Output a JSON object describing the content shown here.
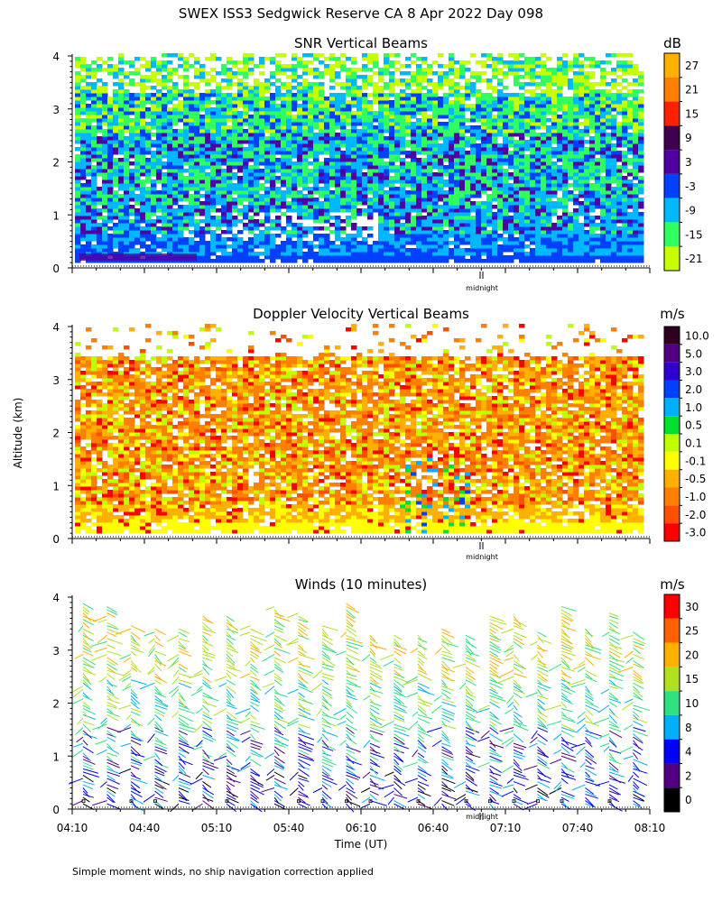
{
  "title": "SWEX ISS3 Sedgwick Reserve CA   8 Apr 2022 Day 098",
  "footnote": "Simple moment winds, no ship navigation correction applied",
  "y_axis_label": "Altitude (km)",
  "x_axis_label": "Time (UT)",
  "midnight_label": "midnight",
  "chart_data": [
    {
      "type": "heatmap",
      "title": "SNR Vertical Beams",
      "units": "dB",
      "ylim": [
        0,
        4
      ],
      "yticks": [
        "0",
        "1",
        "2",
        "3",
        "4"
      ],
      "xlim": [
        "04:10",
        "08:10"
      ],
      "x_tick_count": 9,
      "colorbar": {
        "labels": [
          "27",
          "21",
          "15",
          "9",
          "3",
          "-3",
          "-9",
          "-15",
          "-21"
        ],
        "colors": [
          "#ffb000",
          "#ff8000",
          "#ff2000",
          "#400050",
          "#5000a0",
          "#0040ff",
          "#00b8ff",
          "#30ff60",
          "#c8ff00"
        ]
      }
    },
    {
      "type": "heatmap",
      "title": "Doppler Velocity Vertical Beams",
      "units": "m/s",
      "ylim": [
        0,
        4
      ],
      "yticks": [
        "0",
        "1",
        "2",
        "3",
        "4"
      ],
      "xlim": [
        "04:10",
        "08:10"
      ],
      "x_tick_count": 9,
      "colorbar": {
        "labels": [
          "10.0",
          "5.0",
          "3.0",
          "2.0",
          "1.0",
          "0.5",
          "0.1",
          "-0.1",
          "-0.5",
          "-1.0",
          "-2.0",
          "-3.0"
        ],
        "colors": [
          "#300020",
          "#500080",
          "#3000d0",
          "#0040ff",
          "#00b0ff",
          "#00e030",
          "#c0ff00",
          "#ffff00",
          "#ffb000",
          "#ff8000",
          "#ff5000",
          "#ff0000"
        ]
      }
    },
    {
      "type": "wind-barbs",
      "title": "Winds (10 minutes)",
      "units": "m/s",
      "ylim": [
        0,
        4
      ],
      "yticks": [
        "0",
        "1",
        "2",
        "3",
        "4"
      ],
      "x": [
        "04:10",
        "04:40",
        "05:10",
        "05:40",
        "06:10",
        "06:40",
        "07:10",
        "07:40",
        "08:10"
      ],
      "colorbar": {
        "labels": [
          "30",
          "25",
          "20",
          "15",
          "10",
          "8",
          "4",
          "2",
          "0"
        ],
        "colors": [
          "#ff0000",
          "#ff6000",
          "#ffb000",
          "#b0e020",
          "#30e080",
          "#00b0ff",
          "#0000ff",
          "#500080",
          "#000000"
        ]
      }
    }
  ]
}
